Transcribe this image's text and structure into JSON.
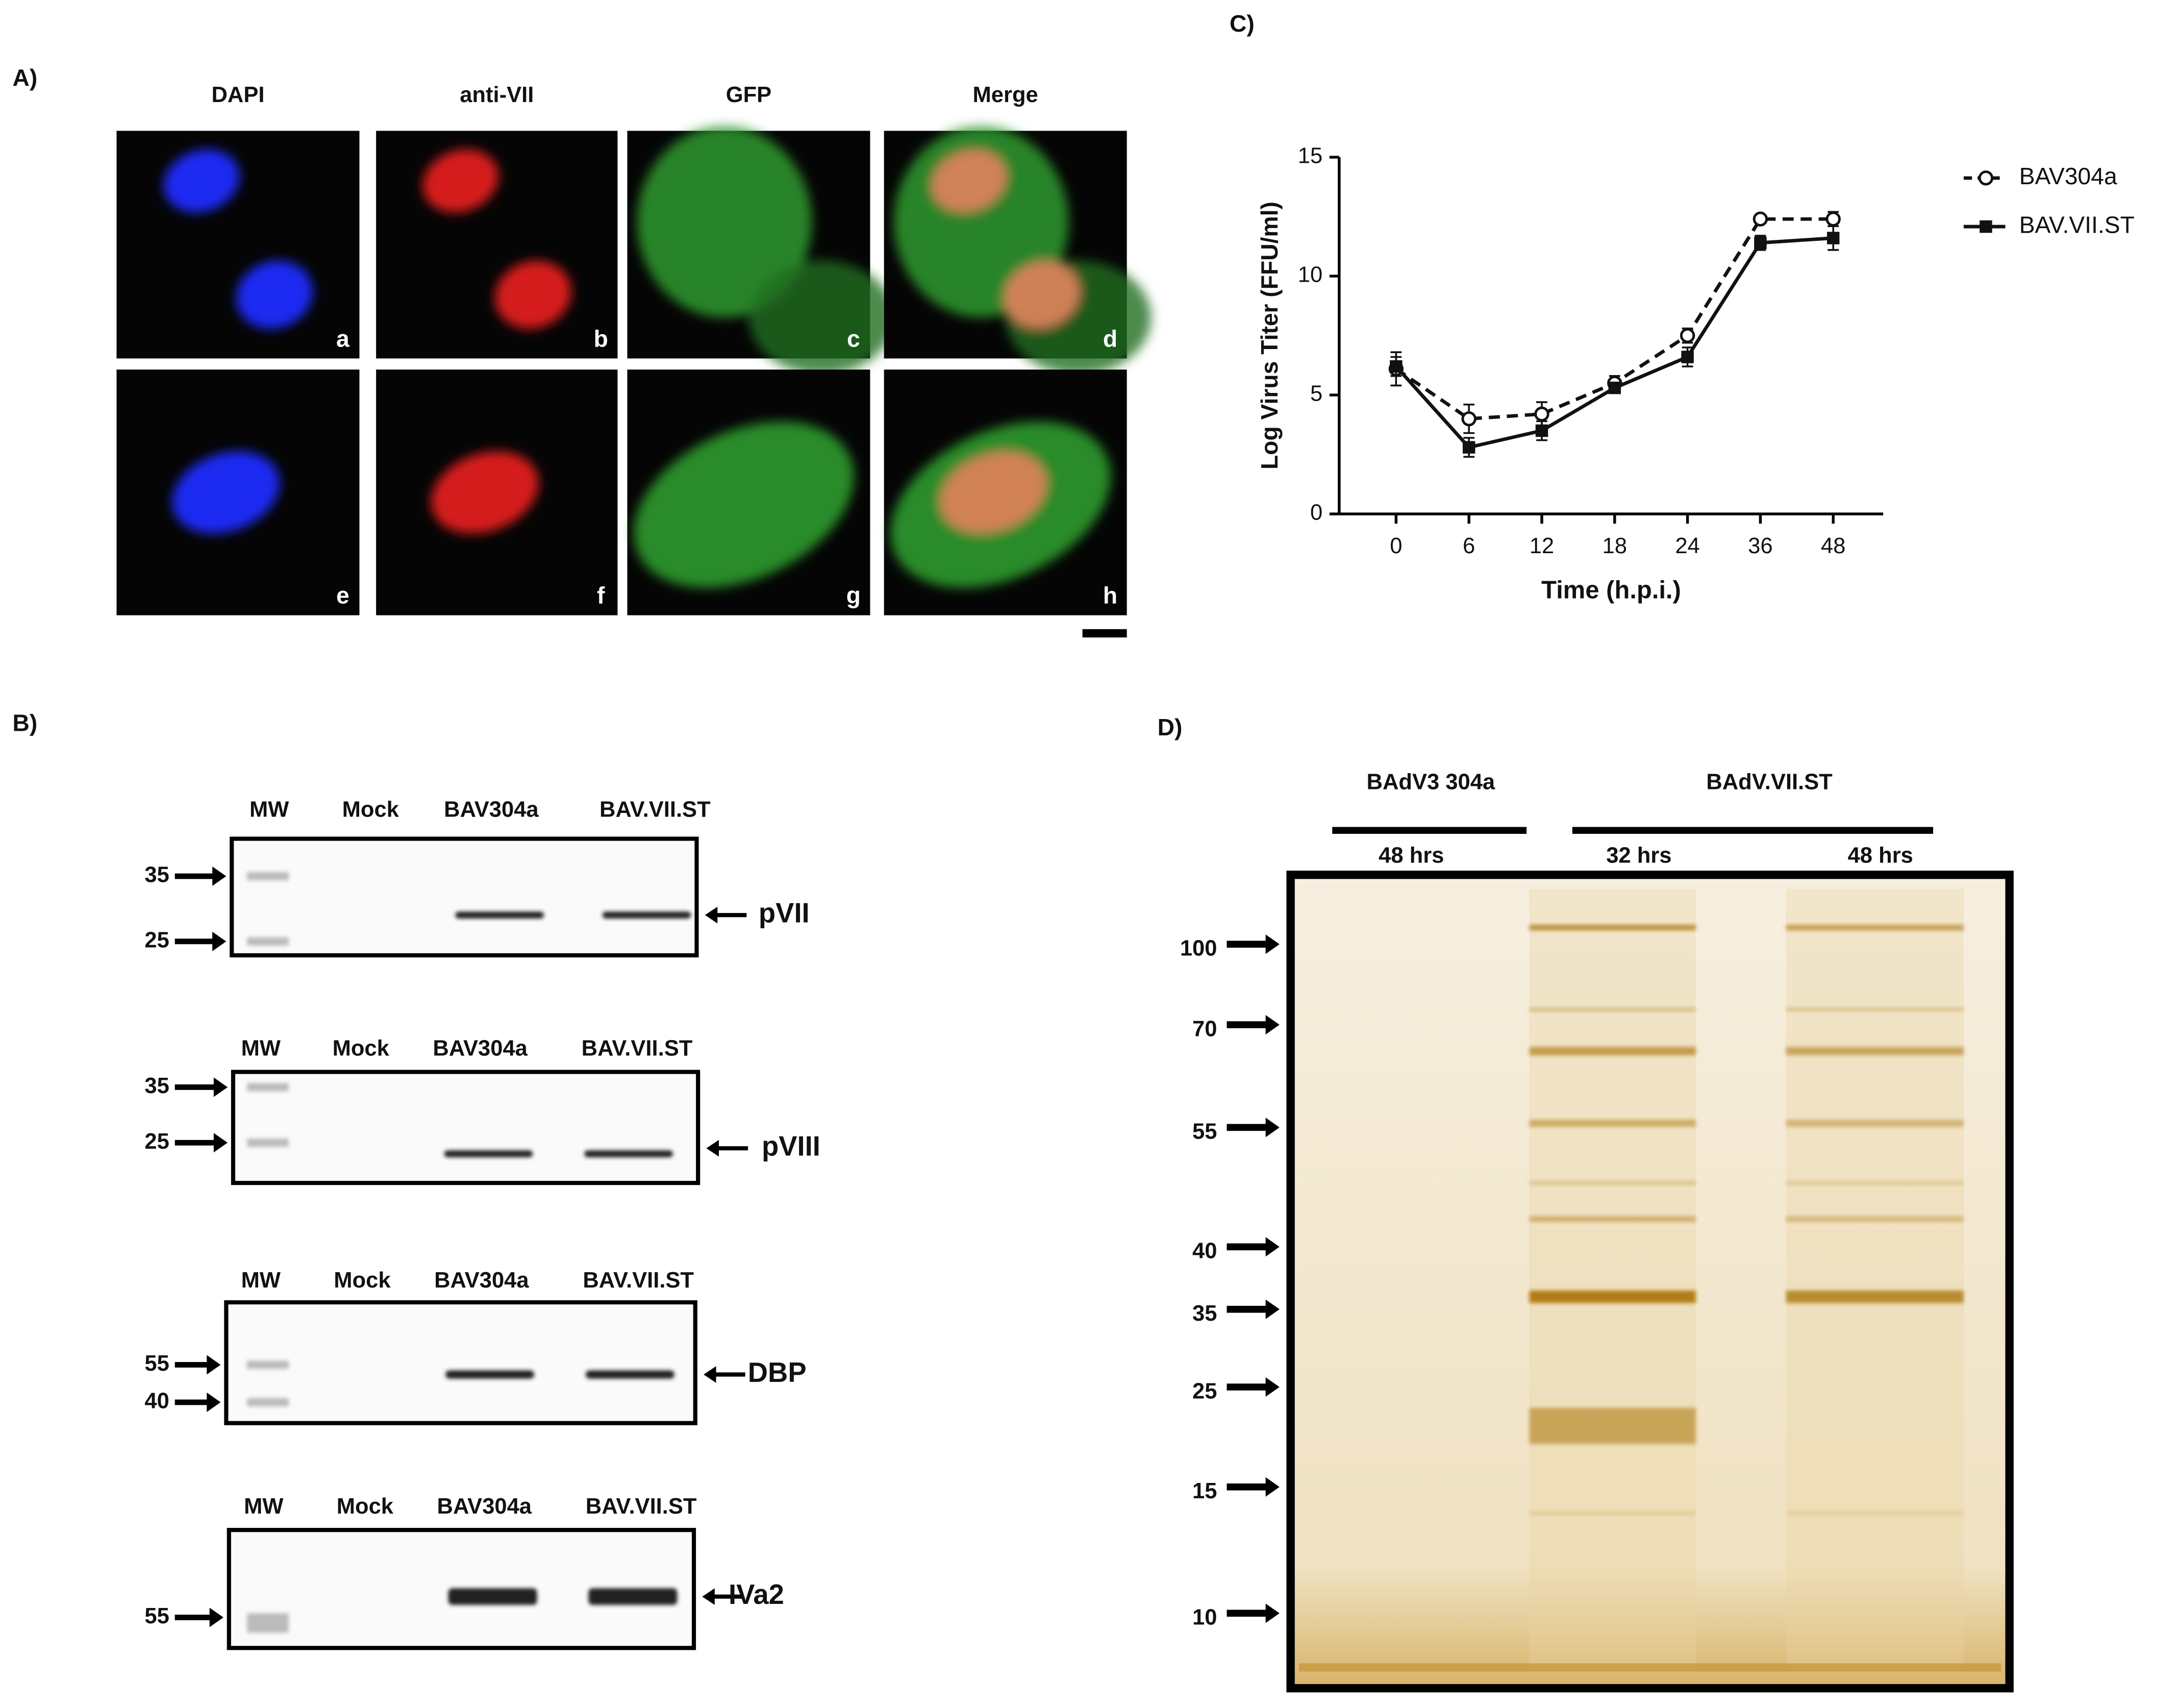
{
  "panel_a": {
    "label": "A)",
    "columns": [
      "DAPI",
      "anti-VII",
      "GFP",
      "Merge"
    ],
    "image_letters": [
      "a",
      "b",
      "c",
      "d",
      "e",
      "f",
      "g",
      "h"
    ]
  },
  "panel_b": {
    "label": "B)",
    "blots": [
      {
        "lanes": [
          "MW",
          "Mock",
          "BAV304a",
          "BAV.VII.ST"
        ],
        "markers": [
          "35",
          "25"
        ],
        "band": "pVII"
      },
      {
        "lanes": [
          "MW",
          "Mock",
          "BAV304a",
          "BAV.VII.ST"
        ],
        "markers": [
          "35",
          "25"
        ],
        "band": "pVIII"
      },
      {
        "lanes": [
          "MW",
          "Mock",
          "BAV304a",
          "BAV.VII.ST"
        ],
        "markers": [
          "55",
          "40"
        ],
        "band": "DBP"
      },
      {
        "lanes": [
          "MW",
          "Mock",
          "BAV304a",
          "BAV.VII.ST"
        ],
        "markers": [
          "55"
        ],
        "band": "IVa2"
      }
    ]
  },
  "chart_data": {
    "type": "line",
    "panel_label": "C)",
    "x_label": "Time (h.p.i.)",
    "y_label": "Log Virus Titer (FFU/ml)",
    "categories": [
      "0",
      "6",
      "12",
      "18",
      "24",
      "36",
      "48"
    ],
    "series": [
      {
        "name": "BAV304a",
        "color": "#111111",
        "dash": "dashed",
        "marker": "circle",
        "values": [
          6.1,
          4.0,
          4.2,
          5.5,
          7.5,
          12.4,
          12.4
        ],
        "errors": [
          0.7,
          0.6,
          0.5,
          0.3,
          0.3,
          0.1,
          0.3
        ]
      },
      {
        "name": "BAV.VII.ST",
        "color": "#111111",
        "dash": "solid",
        "marker": "square",
        "values": [
          6.2,
          2.8,
          3.5,
          5.3,
          6.6,
          11.4,
          11.6
        ],
        "errors": [
          0.4,
          0.4,
          0.4,
          0.2,
          0.4,
          0.3,
          0.5
        ]
      }
    ],
    "ylim": [
      0,
      15
    ],
    "yticks": [
      0,
      5,
      10,
      15
    ],
    "legend": "right"
  },
  "panel_d": {
    "label": "D)",
    "groups": [
      {
        "name": "BAdV3 304a",
        "times": [
          "48 hrs"
        ]
      },
      {
        "name": "BAdV.VII.ST",
        "times": [
          "32 hrs",
          "48 hrs"
        ]
      }
    ],
    "markers": [
      "100",
      "70",
      "55",
      "40",
      "35",
      "25",
      "15",
      "10"
    ]
  }
}
